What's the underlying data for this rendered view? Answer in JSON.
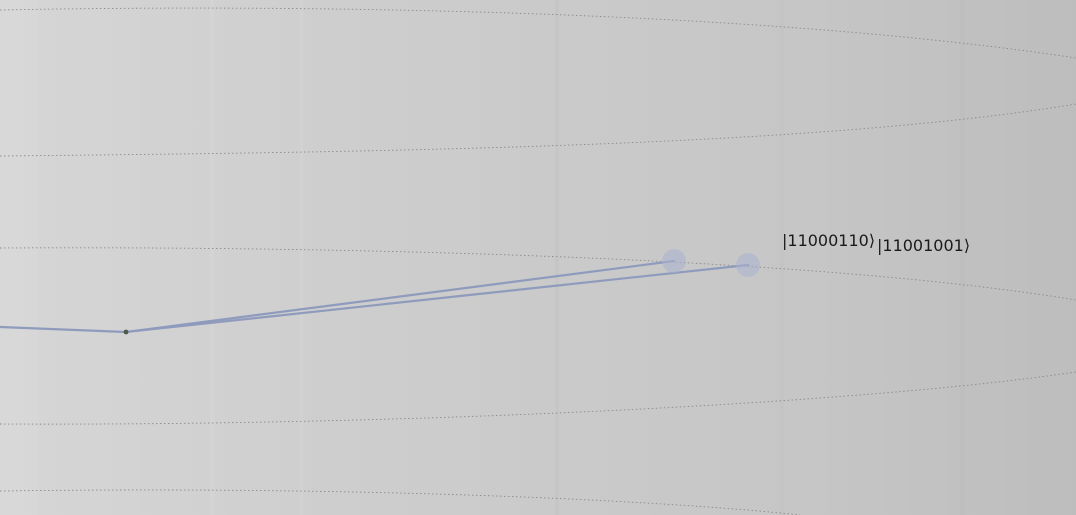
{
  "scene": {
    "background_color": "#cfcfcf",
    "grid_line_color": "#8a8a8a",
    "vector_color": "#8f9bbd",
    "node_color": "#aab2cf",
    "origin_color": "#4a5a4a"
  },
  "states": [
    {
      "label": "|11000110⟩"
    },
    {
      "label": "|11001001⟩"
    }
  ]
}
